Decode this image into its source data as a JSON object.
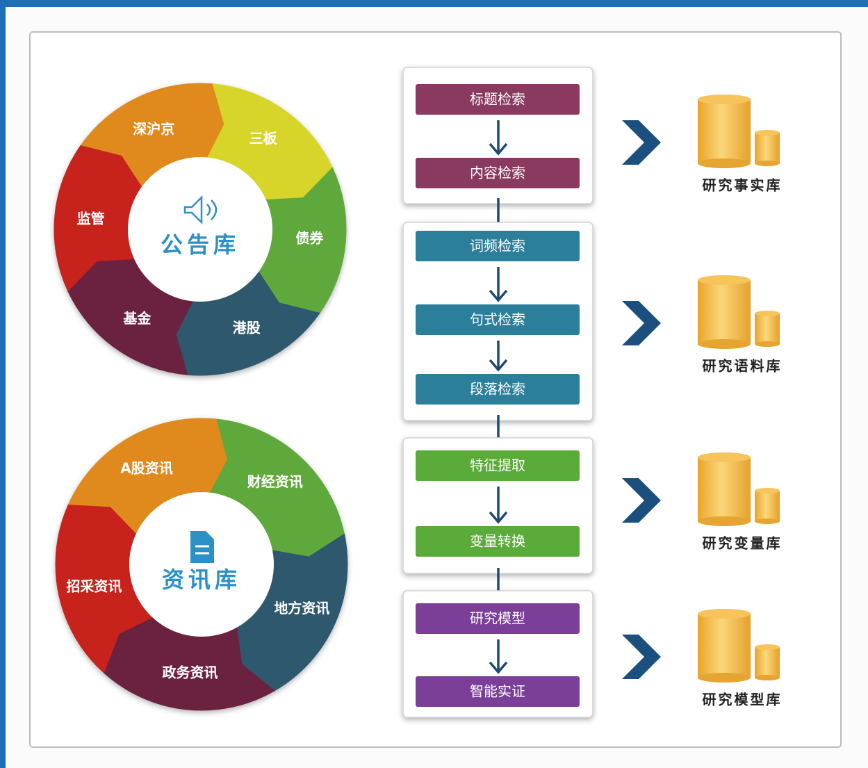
{
  "wheels": [
    {
      "title": "公告库",
      "segments": [
        "深沪京",
        "三板",
        "债券",
        "港股",
        "基金",
        "监管"
      ]
    },
    {
      "title": "资讯库",
      "segments": [
        "A股资讯",
        "财经资讯",
        "地方资讯",
        "政务资讯",
        "招采资讯"
      ]
    }
  ],
  "steps": [
    [
      "标题检索",
      "内容检索"
    ],
    [
      "词频检索",
      "句式检索",
      "段落检索"
    ],
    [
      "特征提取",
      "变量转换"
    ],
    [
      "研究模型",
      "智能实证"
    ]
  ],
  "libraries": [
    "研究事实库",
    "研究语料库",
    "研究变量库",
    "研究模型库"
  ]
}
